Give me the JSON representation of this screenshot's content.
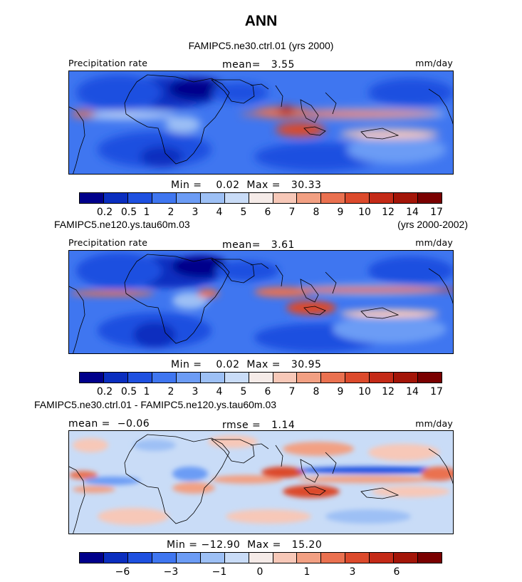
{
  "title": "ANN",
  "panels": [
    {
      "case_label": "FAMIPC5.ne30.ctrl.01 (yrs 2000)",
      "years": "",
      "field_label": "Precipitation rate",
      "stat_left": "",
      "stat_center": "mean=   3.55",
      "units": "mm/day",
      "min_max": "Min =    0.02  Max =   30.33",
      "colorbar": {
        "colors": [
          "#00008b",
          "#0a2ebf",
          "#1e50e0",
          "#3f76f0",
          "#6c9cf5",
          "#9dc0f5",
          "#c9dcf7",
          "#f5ebe8",
          "#f7c8b8",
          "#f2a083",
          "#ea7150",
          "#dc4a2c",
          "#c42a17",
          "#a31508",
          "#7a0000"
        ],
        "ticks": [
          "0.2",
          "0.5",
          "1",
          "2",
          "3",
          "4",
          "5",
          "6",
          "7",
          "8",
          "9",
          "10",
          "12",
          "14",
          "17"
        ]
      }
    },
    {
      "case_label": "FAMIPC5.ne120.ys.tau60m.03",
      "years": "(yrs 2000-2002)",
      "field_label": "Precipitation rate",
      "stat_left": "",
      "stat_center": "mean=   3.61",
      "units": "mm/day",
      "min_max": "Min =    0.02  Max =   30.95",
      "colorbar": {
        "colors": [
          "#00008b",
          "#0a2ebf",
          "#1e50e0",
          "#3f76f0",
          "#6c9cf5",
          "#9dc0f5",
          "#c9dcf7",
          "#f5ebe8",
          "#f7c8b8",
          "#f2a083",
          "#ea7150",
          "#dc4a2c",
          "#c42a17",
          "#a31508",
          "#7a0000"
        ],
        "ticks": [
          "0.2",
          "0.5",
          "1",
          "2",
          "3",
          "4",
          "5",
          "6",
          "7",
          "8",
          "9",
          "10",
          "12",
          "14",
          "17"
        ]
      }
    },
    {
      "case_label": "FAMIPC5.ne30.ctrl.01 - FAMIPC5.ne120.ys.tau60m.03",
      "years": "",
      "field_label": "",
      "stat_left": "mean =  −0.06",
      "stat_center": "rmse =   1.14",
      "units": "mm/day",
      "min_max": "Min = −12.90  Max =   15.20",
      "colorbar": {
        "colors": [
          "#00008b",
          "#0a2ebf",
          "#1e50e0",
          "#3f76f0",
          "#6c9cf5",
          "#9dc0f5",
          "#c9dcf7",
          "#f5ebe8",
          "#f7c8b8",
          "#f2a083",
          "#ea7150",
          "#dc4a2c",
          "#c42a17",
          "#a31508",
          "#7a0000"
        ],
        "ticks": [
          "−6",
          "−3",
          "−1",
          "0",
          "1",
          "3",
          "6"
        ]
      }
    }
  ]
}
